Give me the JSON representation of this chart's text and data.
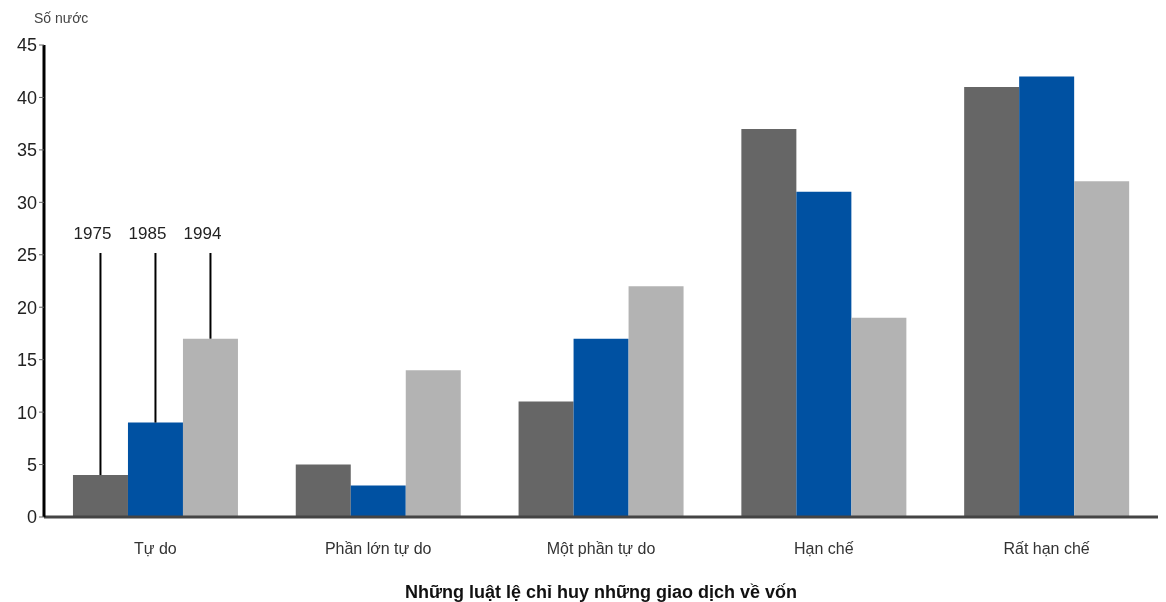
{
  "chart_data": {
    "type": "bar",
    "ylabel": "Số nước",
    "xlabel": "Những luật lệ chỉ huy những giao dịch về vốn",
    "categories": [
      "Tự do",
      "Phần lớn tự do",
      "Một phần tự do",
      "Hạn chế",
      "Rất hạn chế"
    ],
    "series": [
      {
        "name": "1975",
        "color": "#666666",
        "values": [
          4,
          5,
          11,
          37,
          41
        ]
      },
      {
        "name": "1985",
        "color": "#0051a2",
        "values": [
          9,
          3,
          17,
          31,
          42
        ]
      },
      {
        "name": "1994",
        "color": "#b3b3b3",
        "values": [
          17,
          14,
          22,
          19,
          32
        ]
      }
    ],
    "ylim": [
      0,
      45
    ],
    "yticks": [
      0,
      5,
      10,
      15,
      20,
      25,
      30,
      35,
      40,
      45
    ]
  }
}
